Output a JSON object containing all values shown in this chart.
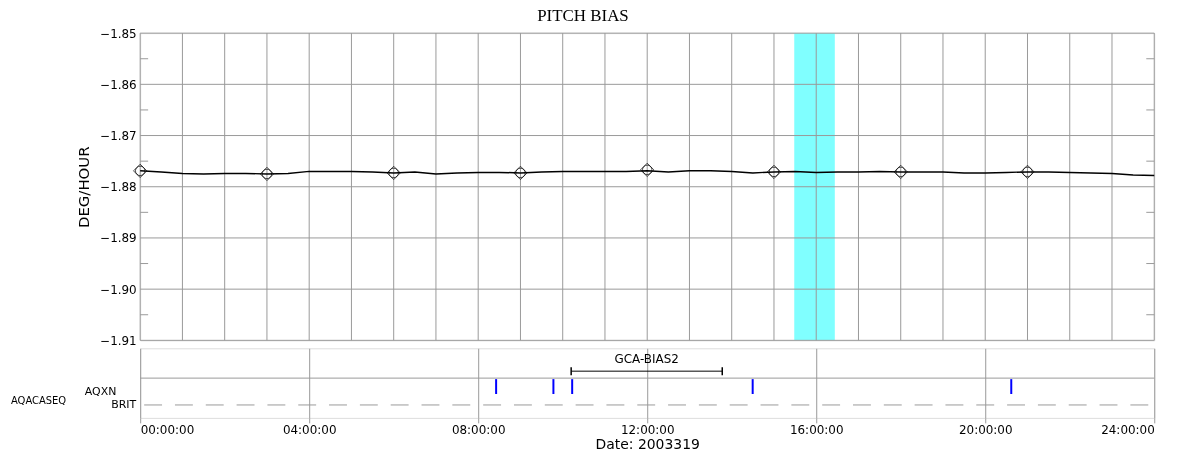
{
  "chart_data": [
    {
      "type": "line",
      "title": "PITCH BIAS",
      "ylabel": "DEG/HOUR",
      "xlabel": "Date: 2003319",
      "xlim": [
        0,
        24
      ],
      "ylim": [
        -1.91,
        -1.85
      ],
      "xticks": [
        {
          "value": 0,
          "label": "00:00:00"
        },
        {
          "value": 1,
          "label": null
        },
        {
          "value": 2,
          "label": null
        },
        {
          "value": 3,
          "label": null
        },
        {
          "value": 4,
          "label": "04:00:00"
        },
        {
          "value": 5,
          "label": null
        },
        {
          "value": 6,
          "label": null
        },
        {
          "value": 7,
          "label": null
        },
        {
          "value": 8,
          "label": "08:00:00"
        },
        {
          "value": 9,
          "label": null
        },
        {
          "value": 10,
          "label": null
        },
        {
          "value": 11,
          "label": null
        },
        {
          "value": 12,
          "label": "12:00:00"
        },
        {
          "value": 13,
          "label": null
        },
        {
          "value": 14,
          "label": null
        },
        {
          "value": 15,
          "label": null
        },
        {
          "value": 16,
          "label": "16:00:00"
        },
        {
          "value": 17,
          "label": null
        },
        {
          "value": 18,
          "label": null
        },
        {
          "value": 19,
          "label": null
        },
        {
          "value": 20,
          "label": "20:00:00"
        },
        {
          "value": 21,
          "label": null
        },
        {
          "value": 22,
          "label": null
        },
        {
          "value": 23,
          "label": null
        },
        {
          "value": 24,
          "label": "24:00:00"
        }
      ],
      "yticks": [
        {
          "value": -1.91,
          "label": "−1.91"
        },
        {
          "value": -1.905,
          "label": null
        },
        {
          "value": -1.9,
          "label": "−1.90"
        },
        {
          "value": -1.895,
          "label": null
        },
        {
          "value": -1.89,
          "label": "−1.89"
        },
        {
          "value": -1.885,
          "label": null
        },
        {
          "value": -1.88,
          "label": "−1.88"
        },
        {
          "value": -1.875,
          "label": null
        },
        {
          "value": -1.87,
          "label": "−1.87"
        },
        {
          "value": -1.865,
          "label": null
        },
        {
          "value": -1.86,
          "label": "−1.86"
        },
        {
          "value": -1.855,
          "label": null
        },
        {
          "value": -1.85,
          "label": "−1.85"
        }
      ],
      "grid": true,
      "bands": [
        {
          "axis": "x",
          "from": 15.48,
          "to": 16.44,
          "color": "#80ffff"
        }
      ],
      "series": [
        {
          "type": "line",
          "color": "#000000",
          "marker": "none",
          "line_style": "solid",
          "x": [
            0,
            0.5,
            1,
            1.5,
            2,
            2.5,
            3,
            3.5,
            4,
            4.5,
            5,
            5.5,
            6,
            6.5,
            7,
            7.5,
            8,
            8.5,
            9,
            9.5,
            10,
            10.5,
            11,
            11.5,
            12,
            12.5,
            13,
            13.5,
            14,
            14.5,
            15,
            15.5,
            16,
            16.5,
            17,
            17.5,
            18,
            18.5,
            19,
            19.5,
            20,
            20.5,
            21,
            21.5,
            22,
            22.5,
            23,
            23.5,
            24
          ],
          "values": [
            -1.8769,
            -1.8771,
            -1.8774,
            -1.8775,
            -1.8774,
            -1.8774,
            -1.8775,
            -1.8774,
            -1.877,
            -1.877,
            -1.877,
            -1.8771,
            -1.8773,
            -1.8771,
            -1.8775,
            -1.8773,
            -1.8772,
            -1.8772,
            -1.8773,
            -1.8771,
            -1.877,
            -1.877,
            -1.877,
            -1.877,
            -1.8769,
            -1.8771,
            -1.8769,
            -1.8769,
            -1.877,
            -1.8773,
            -1.8771,
            -1.877,
            -1.8772,
            -1.8771,
            -1.8771,
            -1.877,
            -1.8771,
            -1.8771,
            -1.8771,
            -1.8773,
            -1.8773,
            -1.8772,
            -1.8771,
            -1.8771,
            -1.8772,
            -1.8773,
            -1.8774,
            -1.8777,
            -1.8778
          ]
        },
        {
          "type": "scatter",
          "marker": "diamond",
          "color": "#000000",
          "x": [
            0,
            3,
            6,
            9,
            12,
            15,
            18,
            21
          ],
          "values": [
            -1.8769,
            -1.8775,
            -1.8773,
            -1.8773,
            -1.8767,
            -1.8771,
            -1.8771,
            -1.8771
          ]
        }
      ]
    },
    {
      "type": "other",
      "annotations": [
        "AQACASEQ",
        "AQXN",
        "BRIT",
        "GCA-BIAS2"
      ]
    }
  ]
}
